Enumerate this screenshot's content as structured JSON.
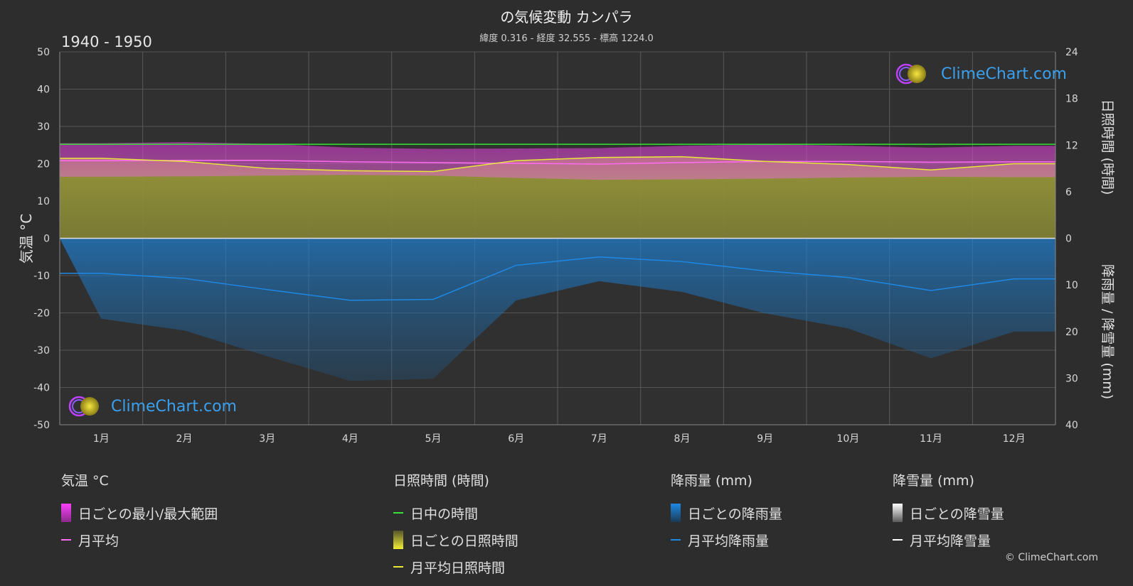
{
  "title": "の気候変動 カンパラ",
  "subtitle": "緯度 0.316 - 経度 32.555 - 標高 1224.0",
  "period": "1940 - 1950",
  "brand": "ClimeChart.com",
  "copyright": "© ClimeChart.com",
  "colors": {
    "background": "#2d2d2d",
    "temp_range": "#ff3ce6",
    "temp_avg": "#ff6cf0",
    "daylight": "#36e336",
    "sunshine": "#e8e83a",
    "rain": "#1e88e5",
    "snow": "#ffffff"
  },
  "legend": {
    "temperature": {
      "title": "気温 °C",
      "range_label": "日ごとの最小/最大範囲",
      "avg_label": "月平均"
    },
    "sunshine": {
      "title": "日照時間 (時間)",
      "daylight_label": "日中の時間",
      "daily_label": "日ごとの日照時間",
      "avg_label": "月平均日照時間"
    },
    "rain": {
      "title": "降雨量 (mm)",
      "daily_label": "日ごとの降雨量",
      "avg_label": "月平均降雨量"
    },
    "snow": {
      "title": "降雪量 (mm)",
      "daily_label": "日ごとの降雪量",
      "avg_label": "月平均降雪量"
    }
  },
  "chart_data": {
    "type": "area",
    "categories": [
      "1月",
      "2月",
      "3月",
      "4月",
      "5月",
      "6月",
      "7月",
      "8月",
      "9月",
      "10月",
      "11月",
      "12月"
    ],
    "y_left": {
      "label": "気温 °C",
      "range": [
        -50,
        50
      ],
      "ticks": [
        50,
        40,
        30,
        20,
        10,
        0,
        -10,
        -20,
        -30,
        -40,
        -50
      ]
    },
    "y_right_top": {
      "label": "日照時間 (時間)",
      "range": [
        0,
        24
      ],
      "ticks": [
        24,
        18,
        12,
        6,
        0
      ]
    },
    "y_right_bottom": {
      "label": "降雨量 / 降雪量 (mm)",
      "range": [
        0,
        40
      ],
      "ticks": [
        0,
        10,
        20,
        30,
        40
      ]
    },
    "series": [
      {
        "name": "月平均",
        "axis": "temperature",
        "values": [
          20.8,
          20.9,
          20.9,
          20.5,
          20.3,
          20.1,
          19.9,
          20.3,
          20.6,
          20.6,
          20.4,
          20.5
        ]
      },
      {
        "name": "日ごとの最小/最大範囲 (min)",
        "axis": "temperature",
        "values": [
          16.5,
          16.6,
          16.8,
          17.0,
          16.8,
          16.2,
          15.7,
          15.8,
          16.0,
          16.3,
          16.5,
          16.4
        ]
      },
      {
        "name": "日ごとの最小/最大範囲 (max)",
        "axis": "temperature",
        "values": [
          25.5,
          25.8,
          25.3,
          24.3,
          24.0,
          24.1,
          24.2,
          24.8,
          25.2,
          24.8,
          24.3,
          24.8
        ]
      },
      {
        "name": "日中の時間",
        "axis": "sunshine",
        "values": [
          12.1,
          12.1,
          12.1,
          12.1,
          12.1,
          12.1,
          12.1,
          12.1,
          12.1,
          12.1,
          12.1,
          12.1
        ]
      },
      {
        "name": "月平均日照時間",
        "axis": "sunshine",
        "values": [
          10.3,
          9.9,
          9.0,
          8.7,
          8.6,
          10.0,
          10.4,
          10.5,
          9.9,
          9.5,
          8.8,
          9.6
        ]
      },
      {
        "name": "月平均降雨量",
        "axis": "rain",
        "values": [
          7.5,
          8.6,
          11.0,
          13.3,
          13.1,
          5.8,
          4.0,
          5.0,
          7.0,
          8.4,
          11.2,
          8.7
        ]
      },
      {
        "name": "月平均降雪量",
        "axis": "snow",
        "values": [
          0,
          0,
          0,
          0,
          0,
          0,
          0,
          0,
          0,
          0,
          0,
          0
        ]
      }
    ],
    "grid": true,
    "legend_position": "bottom"
  }
}
